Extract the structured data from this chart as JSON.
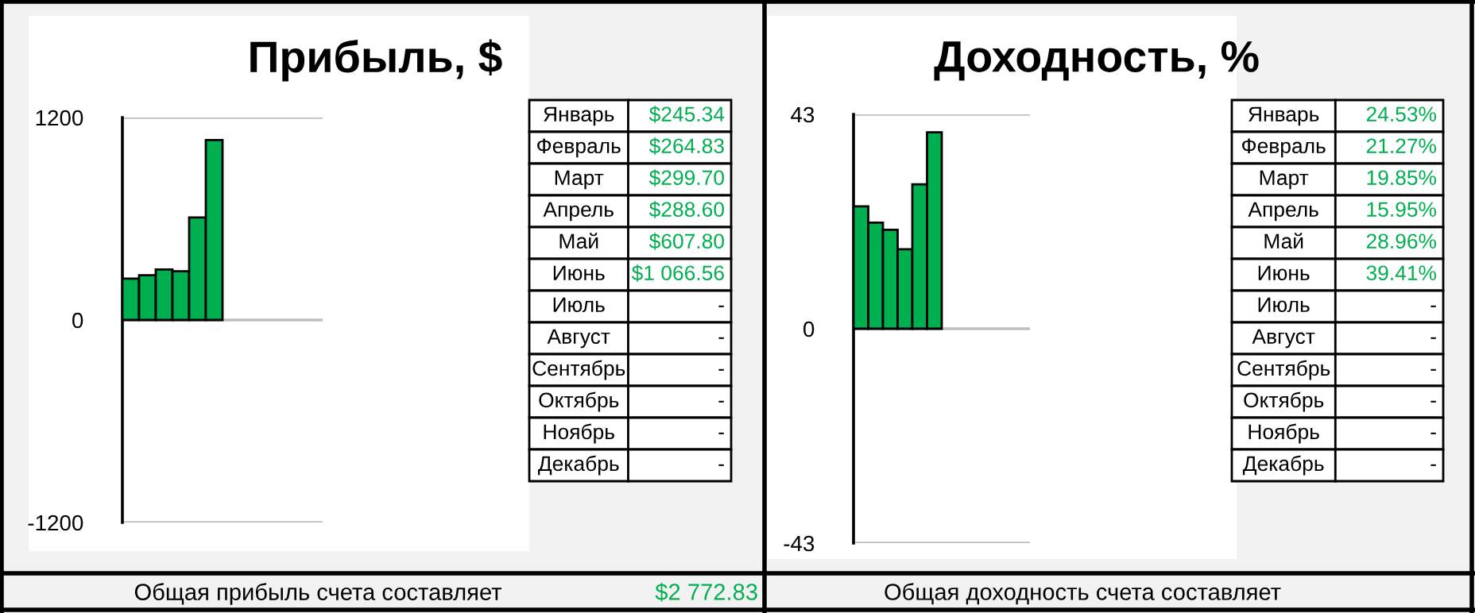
{
  "chart_data": [
    {
      "type": "bar",
      "title": "Прибыль, $",
      "categories": [
        null,
        null,
        null,
        null,
        null,
        null,
        null,
        null,
        null,
        null,
        null,
        null
      ],
      "series": [
        {
          "color": "#00b050",
          "values": [
            245.34,
            264.83,
            299.7,
            288.6,
            607.8,
            1066.56,
            null,
            null,
            null,
            null,
            null,
            null
          ]
        }
      ],
      "ylim": [
        -1200,
        1200
      ],
      "yticks": [
        -1200,
        0,
        1200
      ],
      "grid": "y",
      "tick_labels": "y",
      "annotations": [
        "Январь",
        "$245.34",
        "Февраль",
        "$264.83",
        "Март",
        "$299.70",
        "Апрель",
        "$288.60",
        "Май",
        "$607.80",
        "Июнь",
        "$1 066.56",
        "Июль",
        "-",
        "Август",
        "-",
        "Сентябрь",
        "-",
        "Октябрь",
        "-",
        "Ноябрь",
        "-",
        "Декабрь",
        "-",
        "Общая прибыль счета составляет",
        "$2 772.83"
      ]
    },
    {
      "type": "bar",
      "title": "Доходность, %",
      "categories": [
        null,
        null,
        null,
        null,
        null,
        null,
        null,
        null,
        null,
        null,
        null,
        null
      ],
      "series": [
        {
          "color": "#00b050",
          "values": [
            24.53,
            21.27,
            19.85,
            15.95,
            28.96,
            39.41,
            null,
            null,
            null,
            null,
            null,
            null
          ]
        }
      ],
      "ylim": [
        -43,
        43
      ],
      "yticks": [
        -43,
        0,
        43
      ],
      "grid": "y",
      "tick_labels": "y",
      "annotations": [
        "Январь",
        "24.53%",
        "Февраль",
        "21.27%",
        "Март",
        "19.85%",
        "Апрель",
        "15.95%",
        "Май",
        "28.96%",
        "Июнь",
        "39.41%",
        "Июль",
        "-",
        "Август",
        "-",
        "Сентябрь",
        "-",
        "Октябрь",
        "-",
        "Ноябрь",
        "-",
        "Декабрь",
        "-",
        "Общая доходность счета составляет"
      ]
    }
  ]
}
